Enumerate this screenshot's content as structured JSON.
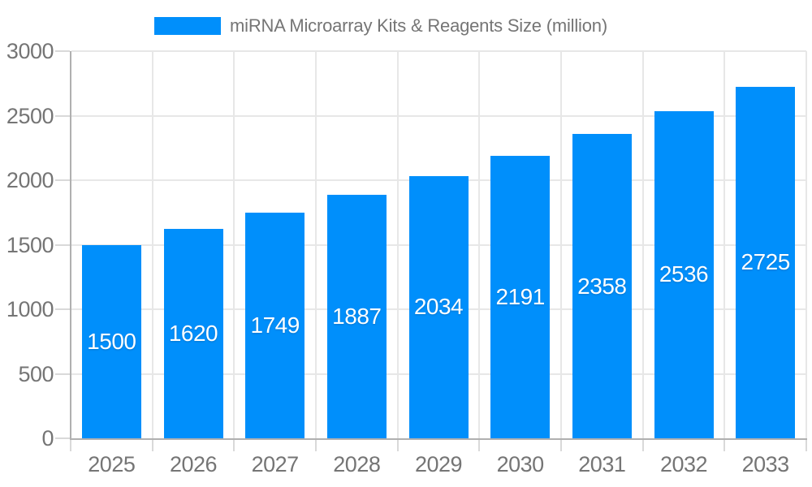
{
  "legend": {
    "label": "miRNA Microarray Kits & Reagents Size (million)"
  },
  "chart_data": {
    "type": "bar",
    "title": "miRNA Microarray Kits & Reagents Size (million)",
    "categories": [
      "2025",
      "2026",
      "2027",
      "2028",
      "2029",
      "2030",
      "2031",
      "2032",
      "2033"
    ],
    "series": [
      {
        "name": "miRNA Microarray Kits & Reagents Size (million)",
        "values": [
          1500,
          1620,
          1749,
          1887,
          2034,
          2191,
          2358,
          2536,
          2725
        ]
      }
    ],
    "value_labels": "inside-center",
    "xlabel": "",
    "ylabel": "",
    "ylim": [
      0,
      3000
    ],
    "yticks": [
      0,
      500,
      1000,
      1500,
      2000,
      2500,
      3000
    ],
    "grid": true,
    "legend_position": "top"
  },
  "colors": {
    "bar": "#008FFB",
    "axis_text": "#757575",
    "legend_text": "#757575",
    "value_label": "#ffffff",
    "gridline": "#e7e7e7",
    "axis_line": "#b0b0b0",
    "tick": "#d9d9d9",
    "background": "#ffffff"
  }
}
